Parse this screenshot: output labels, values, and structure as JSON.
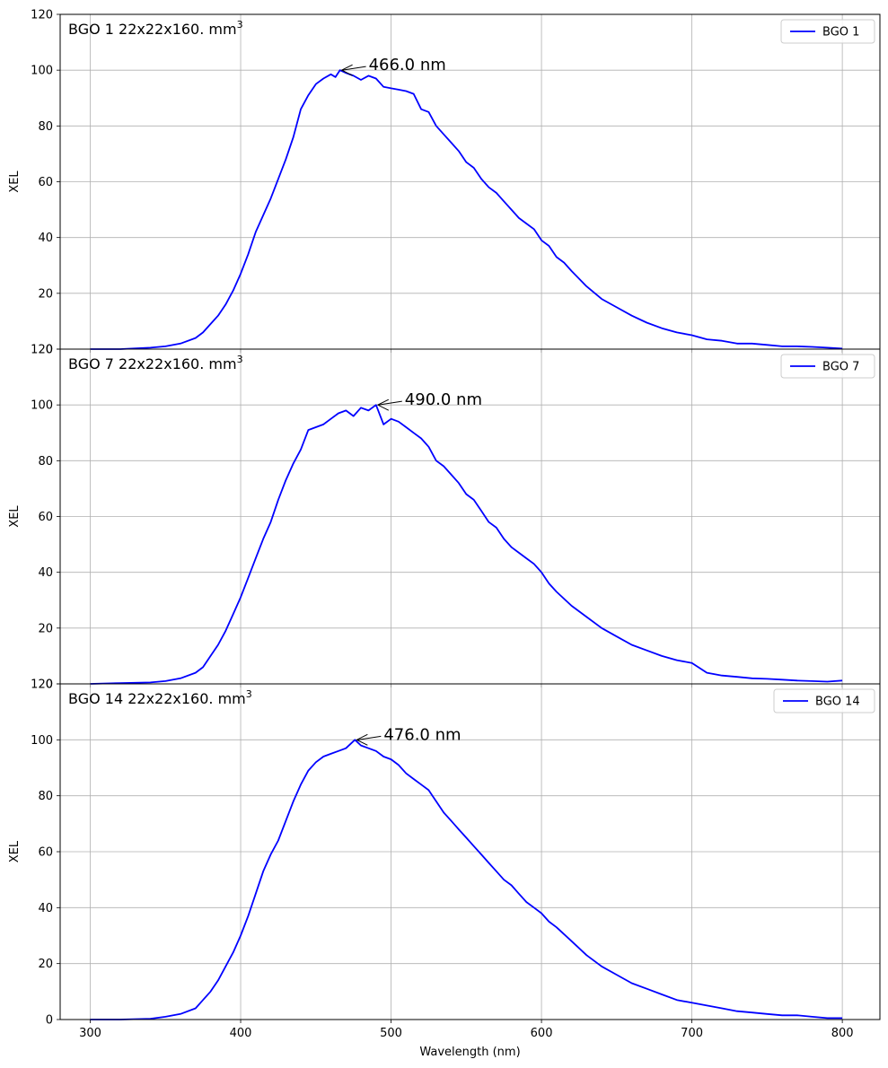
{
  "chart_data": {
    "type": "line",
    "xlabel": "Wavelength (nm)",
    "xlim": [
      280,
      825
    ],
    "x_ticks": [
      300,
      400,
      500,
      600,
      700,
      800
    ],
    "grid": true,
    "line_color": "#0000ff",
    "panels": [
      {
        "title": "BGO 1 22x22x160. mm",
        "title_sup": "3",
        "ylabel": "XEL",
        "ylim": [
          0,
          120
        ],
        "y_ticks": [
          0,
          20,
          40,
          60,
          80,
          100,
          120
        ],
        "legend": "top-right",
        "series": [
          {
            "name": "BGO 1",
            "x": [
              300,
              320,
              340,
              350,
              360,
              370,
              375,
              380,
              385,
              390,
              395,
              400,
              405,
              410,
              415,
              420,
              425,
              430,
              435,
              440,
              445,
              450,
              455,
              460,
              463,
              466,
              470,
              475,
              480,
              485,
              490,
              495,
              500,
              505,
              510,
              515,
              520,
              525,
              530,
              535,
              540,
              545,
              550,
              555,
              560,
              565,
              570,
              575,
              580,
              585,
              590,
              595,
              600,
              605,
              610,
              615,
              620,
              630,
              640,
              650,
              660,
              670,
              680,
              690,
              700,
              710,
              720,
              730,
              740,
              750,
              760,
              770,
              780,
              790,
              800
            ],
            "y": [
              0,
              0,
              0.5,
              1,
              2,
              4,
              6,
              9,
              12,
              16,
              21,
              27,
              34,
              42,
              48,
              54,
              61,
              68,
              76,
              86,
              91,
              95,
              97,
              98.5,
              97.5,
              100,
              99,
              98,
              96.5,
              98,
              97,
              94,
              93.5,
              93,
              92.5,
              91.5,
              86,
              85,
              80,
              77,
              74,
              71,
              67,
              65,
              61,
              58,
              56,
              53,
              50,
              47,
              45,
              43,
              39,
              37,
              33,
              31,
              28,
              22.5,
              18,
              15,
              12,
              9.5,
              7.5,
              6,
              5,
              3.5,
              3,
              2,
              2,
              1.5,
              1,
              1,
              0.8,
              0.5,
              0.2
            ]
          }
        ],
        "annotation": {
          "text": "466.0 nm",
          "x": 466,
          "y": 100
        }
      },
      {
        "title": "BGO 7 22x22x160. mm",
        "title_sup": "3",
        "ylabel": "XEL",
        "ylim": [
          0,
          120
        ],
        "y_ticks": [
          0,
          20,
          40,
          60,
          80,
          100,
          120
        ],
        "legend": "top-right",
        "series": [
          {
            "name": "BGO 7",
            "x": [
              300,
              320,
              340,
              350,
              360,
              370,
              375,
              380,
              385,
              390,
              395,
              400,
              405,
              410,
              415,
              420,
              425,
              430,
              435,
              440,
              445,
              450,
              455,
              460,
              465,
              470,
              475,
              480,
              485,
              490,
              495,
              500,
              505,
              510,
              515,
              520,
              525,
              530,
              535,
              540,
              545,
              550,
              555,
              560,
              565,
              570,
              575,
              580,
              585,
              590,
              595,
              600,
              605,
              610,
              620,
              630,
              640,
              650,
              660,
              670,
              680,
              690,
              700,
              710,
              720,
              730,
              740,
              750,
              760,
              770,
              780,
              790,
              800
            ],
            "y": [
              0,
              0.3,
              0.5,
              1,
              2,
              4,
              6,
              10,
              14,
              19,
              25,
              31,
              38,
              45,
              52,
              58,
              66,
              73,
              79,
              84,
              91,
              92,
              93,
              95,
              97,
              98,
              96,
              99,
              98,
              100,
              93,
              95,
              94,
              92,
              90,
              88,
              85,
              80,
              78,
              75,
              72,
              68,
              66,
              62,
              58,
              56,
              52,
              49,
              47,
              45,
              43,
              40,
              36,
              33,
              28,
              24,
              20,
              17,
              14,
              12,
              10,
              8.5,
              7.5,
              4,
              3,
              2.5,
              2,
              1.8,
              1.5,
              1.2,
              1,
              0.8,
              1.2
            ]
          }
        ],
        "annotation": {
          "text": "490.0 nm",
          "x": 490,
          "y": 100
        }
      },
      {
        "title": "BGO 14 22x22x160. mm",
        "title_sup": "3",
        "ylabel": "XEL",
        "ylim": [
          0,
          120
        ],
        "y_ticks": [
          0,
          20,
          40,
          60,
          80,
          100,
          120
        ],
        "legend": "top-right",
        "series": [
          {
            "name": "BGO 14",
            "x": [
              300,
              320,
              340,
              350,
              360,
              370,
              375,
              380,
              385,
              390,
              395,
              400,
              405,
              410,
              415,
              420,
              425,
              430,
              435,
              440,
              445,
              450,
              455,
              460,
              465,
              470,
              476,
              480,
              485,
              490,
              495,
              500,
              505,
              510,
              515,
              520,
              525,
              530,
              535,
              540,
              545,
              550,
              555,
              560,
              565,
              570,
              575,
              580,
              585,
              590,
              595,
              600,
              605,
              610,
              620,
              630,
              640,
              650,
              660,
              670,
              680,
              690,
              700,
              710,
              720,
              730,
              740,
              750,
              760,
              770,
              780,
              790,
              800
            ],
            "y": [
              0,
              0,
              0.3,
              1,
              2,
              4,
              7,
              10,
              14,
              19,
              24,
              30,
              37,
              45,
              53,
              59,
              64,
              71,
              78,
              84,
              89,
              92,
              94,
              95,
              96,
              97,
              100,
              98,
              97,
              96,
              94,
              93,
              91,
              88,
              86,
              84,
              82,
              78,
              74,
              71,
              68,
              65,
              62,
              59,
              56,
              53,
              50,
              48,
              45,
              42,
              40,
              38,
              35,
              33,
              28,
              23,
              19,
              16,
              13,
              11,
              9,
              7,
              6,
              5,
              4,
              3,
              2.5,
              2,
              1.5,
              1.5,
              1,
              0.5,
              0.5
            ]
          }
        ],
        "annotation": {
          "text": "476.0 nm",
          "x": 476,
          "y": 100
        }
      }
    ]
  }
}
